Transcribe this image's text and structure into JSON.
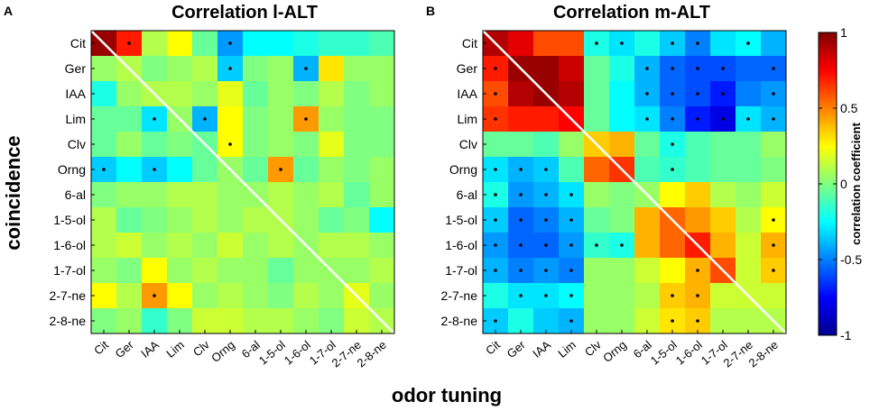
{
  "chart_data": {
    "type": "heatmap",
    "ylabel": "coincidence",
    "xlabel": "odor tuning",
    "labels": [
      "Cit",
      "Ger",
      "IAA",
      "Lim",
      "Clv",
      "Orng",
      "6-al",
      "1-5-ol",
      "1-6-ol",
      "1-7-ol",
      "2-7-ne",
      "2-8-ne"
    ],
    "colorbar": {
      "label": "correlation coefficient",
      "range": [
        -1,
        1
      ],
      "ticks": [
        "-1",
        "-0.5",
        "0",
        "0.5",
        "1"
      ],
      "colormap": "jet"
    },
    "panels": [
      {
        "panel_label": "A",
        "title": "Correlation l-ALT",
        "matrix": [
          [
            0.95,
            0.7,
            0.1,
            0.25,
            -0.05,
            -0.45,
            -0.25,
            -0.25,
            -0.2,
            -0.15,
            -0.15,
            -0.1
          ],
          [
            0.05,
            0.1,
            0.0,
            0.05,
            0.1,
            -0.35,
            0.0,
            0.05,
            -0.4,
            0.3,
            0.05,
            0.05
          ],
          [
            -0.2,
            0.05,
            0.1,
            0.1,
            0.05,
            0.2,
            -0.05,
            0.05,
            0.0,
            0.1,
            0.0,
            0.05
          ],
          [
            -0.05,
            -0.05,
            -0.3,
            0.05,
            -0.4,
            0.25,
            0.0,
            0.05,
            0.45,
            0.05,
            0.0,
            0.0
          ],
          [
            -0.05,
            0.05,
            -0.05,
            0.0,
            -0.05,
            0.25,
            0.0,
            0.05,
            0.0,
            0.2,
            0.0,
            0.0
          ],
          [
            -0.35,
            -0.25,
            -0.35,
            -0.25,
            -0.05,
            0.05,
            -0.05,
            0.45,
            -0.05,
            0.05,
            0.0,
            0.05
          ],
          [
            0.0,
            0.05,
            0.05,
            0.1,
            0.1,
            0.05,
            0.05,
            0.1,
            0.05,
            0.1,
            -0.05,
            0.05
          ],
          [
            0.1,
            -0.05,
            0.0,
            0.05,
            0.1,
            0.05,
            0.1,
            0.1,
            0.05,
            -0.05,
            0.0,
            -0.25
          ],
          [
            0.1,
            0.15,
            0.05,
            0.1,
            0.05,
            0.15,
            0.05,
            0.1,
            0.05,
            0.1,
            0.1,
            0.05
          ],
          [
            0.05,
            0.0,
            0.25,
            0.05,
            0.1,
            0.05,
            0.05,
            -0.05,
            0.05,
            0.05,
            0.05,
            0.1
          ],
          [
            0.25,
            0.1,
            0.45,
            0.25,
            0.05,
            0.1,
            0.05,
            0.0,
            0.1,
            0.05,
            0.2,
            0.05
          ],
          [
            0.0,
            0.05,
            -0.15,
            0.0,
            0.15,
            0.15,
            0.1,
            0.1,
            0.05,
            0.0,
            0.15,
            0.1
          ]
        ],
        "significant": [
          [
            0,
            1
          ],
          [
            0,
            5
          ],
          [
            1,
            5
          ],
          [
            1,
            8
          ],
          [
            3,
            2
          ],
          [
            3,
            4
          ],
          [
            3,
            8
          ],
          [
            4,
            5
          ],
          [
            5,
            0
          ],
          [
            5,
            2
          ],
          [
            5,
            7
          ],
          [
            10,
            2
          ]
        ]
      },
      {
        "panel_label": "B",
        "title": "Correlation m-ALT",
        "matrix": [
          [
            0.9,
            0.8,
            0.6,
            0.6,
            -0.2,
            -0.3,
            -0.2,
            -0.35,
            -0.5,
            -0.3,
            -0.25,
            -0.4
          ],
          [
            0.7,
            0.95,
            0.95,
            0.85,
            -0.05,
            -0.2,
            -0.4,
            -0.55,
            -0.6,
            -0.6,
            -0.55,
            -0.55
          ],
          [
            0.6,
            0.9,
            0.95,
            0.9,
            -0.05,
            -0.25,
            -0.4,
            -0.55,
            -0.6,
            -0.7,
            -0.5,
            -0.45
          ],
          [
            0.65,
            0.7,
            0.7,
            0.75,
            -0.05,
            -0.25,
            -0.3,
            -0.5,
            -0.7,
            -0.8,
            -0.3,
            -0.4
          ],
          [
            -0.05,
            -0.05,
            -0.1,
            0.05,
            0.35,
            0.4,
            -0.05,
            -0.2,
            -0.1,
            -0.05,
            -0.05,
            0.05
          ],
          [
            -0.3,
            -0.4,
            -0.35,
            -0.1,
            0.55,
            0.65,
            -0.1,
            -0.15,
            -0.1,
            -0.05,
            -0.05,
            0.0
          ],
          [
            -0.2,
            -0.45,
            -0.4,
            -0.3,
            0.05,
            0.0,
            0.05,
            0.25,
            0.35,
            0.1,
            0.05,
            0.15
          ],
          [
            -0.35,
            -0.55,
            -0.5,
            -0.4,
            -0.05,
            0.0,
            0.4,
            0.55,
            0.45,
            0.35,
            0.1,
            0.25
          ],
          [
            -0.45,
            -0.55,
            -0.55,
            -0.45,
            -0.15,
            -0.2,
            0.4,
            0.55,
            0.7,
            0.4,
            0.15,
            0.4
          ],
          [
            -0.4,
            -0.5,
            -0.45,
            -0.5,
            0.05,
            0.05,
            0.15,
            0.25,
            0.4,
            0.6,
            0.15,
            0.35
          ],
          [
            -0.2,
            -0.3,
            -0.3,
            -0.25,
            0.05,
            0.05,
            0.1,
            0.35,
            0.4,
            0.15,
            0.15,
            0.15
          ],
          [
            -0.35,
            -0.2,
            -0.35,
            -0.4,
            0.05,
            0.05,
            0.15,
            0.3,
            0.35,
            0.1,
            0.1,
            0.1
          ]
        ],
        "significant": [
          [
            0,
            4
          ],
          [
            0,
            5
          ],
          [
            0,
            7
          ],
          [
            0,
            8
          ],
          [
            0,
            10
          ],
          [
            1,
            0
          ],
          [
            1,
            6
          ],
          [
            1,
            7
          ],
          [
            1,
            8
          ],
          [
            1,
            9
          ],
          [
            1,
            11
          ],
          [
            2,
            0
          ],
          [
            2,
            6
          ],
          [
            2,
            7
          ],
          [
            2,
            8
          ],
          [
            2,
            9
          ],
          [
            2,
            11
          ],
          [
            3,
            0
          ],
          [
            3,
            6
          ],
          [
            3,
            7
          ],
          [
            3,
            8
          ],
          [
            3,
            9
          ],
          [
            3,
            10
          ],
          [
            3,
            11
          ],
          [
            4,
            7
          ],
          [
            5,
            0
          ],
          [
            5,
            1
          ],
          [
            5,
            2
          ],
          [
            5,
            7
          ],
          [
            6,
            0
          ],
          [
            6,
            1
          ],
          [
            6,
            2
          ],
          [
            6,
            3
          ],
          [
            7,
            0
          ],
          [
            7,
            1
          ],
          [
            7,
            2
          ],
          [
            7,
            3
          ],
          [
            7,
            11
          ],
          [
            8,
            0
          ],
          [
            8,
            1
          ],
          [
            8,
            2
          ],
          [
            8,
            3
          ],
          [
            8,
            4
          ],
          [
            8,
            5
          ],
          [
            8,
            11
          ],
          [
            9,
            0
          ],
          [
            9,
            1
          ],
          [
            9,
            2
          ],
          [
            9,
            3
          ],
          [
            9,
            8
          ],
          [
            9,
            11
          ],
          [
            10,
            1
          ],
          [
            10,
            2
          ],
          [
            10,
            3
          ],
          [
            10,
            7
          ],
          [
            10,
            8
          ],
          [
            11,
            0
          ],
          [
            11,
            3
          ],
          [
            11,
            7
          ],
          [
            11,
            8
          ]
        ]
      }
    ]
  }
}
